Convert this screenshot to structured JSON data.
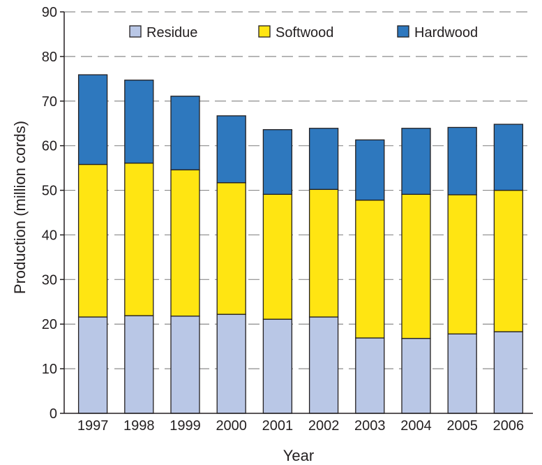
{
  "chart_data": {
    "type": "bar",
    "stacked": true,
    "categories": [
      "1997",
      "1998",
      "1999",
      "2000",
      "2001",
      "2002",
      "2003",
      "2004",
      "2005",
      "2006"
    ],
    "series": [
      {
        "name": "Residue",
        "color": "#b9c7e6",
        "values": [
          21.6,
          21.9,
          21.8,
          22.2,
          21.1,
          21.6,
          16.9,
          16.8,
          17.8,
          18.3
        ]
      },
      {
        "name": "Softwood",
        "color": "#ffe512",
        "values": [
          34.2,
          34.2,
          32.8,
          29.5,
          28.0,
          28.6,
          30.9,
          32.3,
          31.2,
          31.7
        ]
      },
      {
        "name": "Hardwood",
        "color": "#2e78be",
        "values": [
          20.1,
          18.6,
          16.5,
          15.0,
          14.5,
          13.7,
          13.5,
          14.8,
          15.1,
          14.8
        ]
      }
    ],
    "xlabel": "Year",
    "ylabel": "Production (million cords)",
    "ylim": [
      0,
      90
    ],
    "yticks": [
      "0",
      "10",
      "20",
      "30",
      "40",
      "50",
      "60",
      "70",
      "80",
      "90"
    ],
    "grid": "horizontal dashed",
    "legend_position": "top"
  }
}
